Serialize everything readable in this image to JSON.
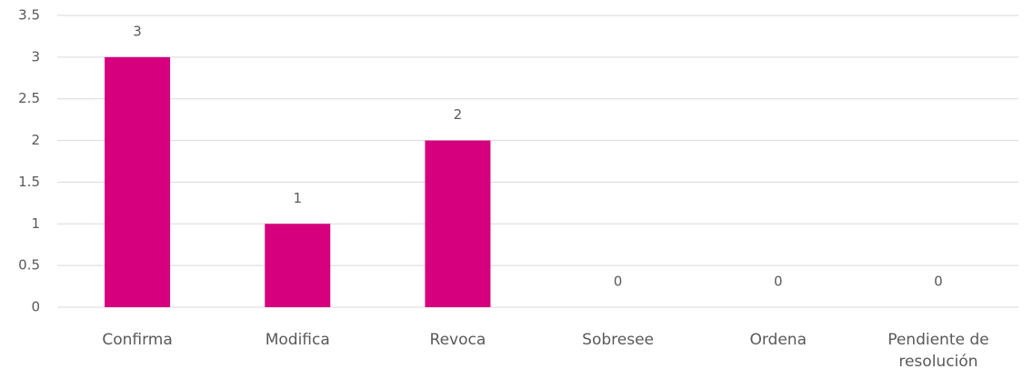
{
  "chart_data": {
    "type": "bar",
    "categories": [
      "Confirma",
      "Modifica",
      "Revoca",
      "Sobresee",
      "Ordena",
      "Pendiente de resolución"
    ],
    "values": [
      3,
      1,
      2,
      0,
      0,
      0
    ],
    "color": "#d6007e",
    "ylim": [
      0,
      3.5
    ],
    "yticks": [
      0,
      0.5,
      1,
      1.5,
      2,
      2.5,
      3,
      3.5
    ],
    "grid": true,
    "data_labels": true
  }
}
